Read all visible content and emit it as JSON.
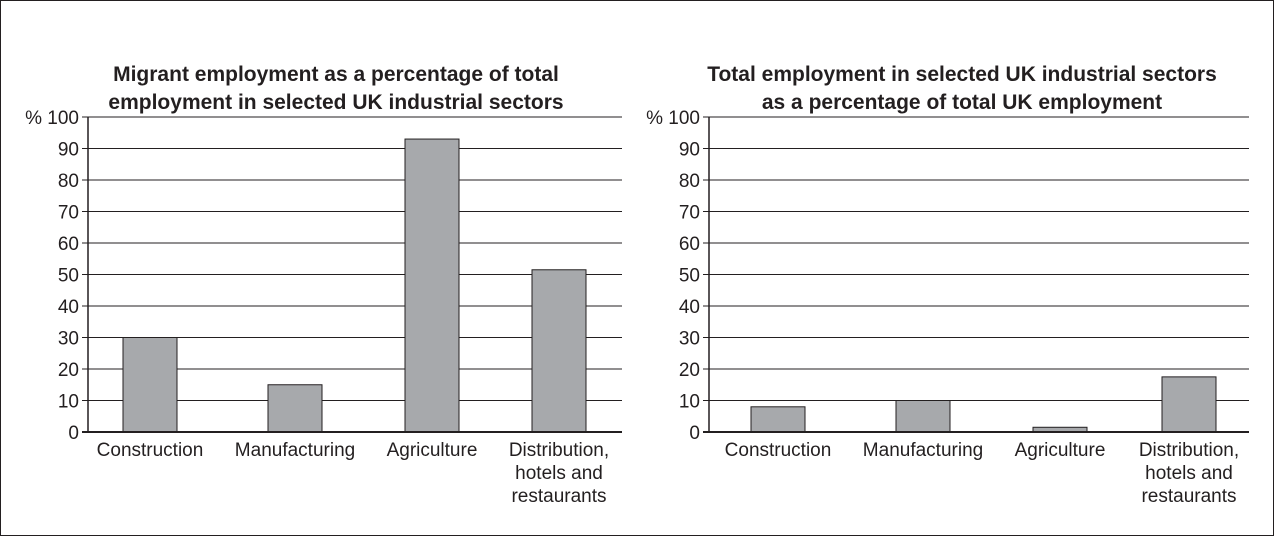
{
  "chart_data": [
    {
      "type": "bar",
      "title_lines": [
        "Migrant employment as a percentage of total",
        "employment in selected UK industrial sectors"
      ],
      "unit_label": "%",
      "categories": [
        [
          "Construction"
        ],
        [
          "Manufacturing"
        ],
        [
          "Agriculture"
        ],
        [
          "Distribution,",
          "hotels and",
          "restaurants"
        ]
      ],
      "values": [
        30,
        15,
        93,
        51.5
      ],
      "ylim": [
        0,
        100
      ],
      "yticks": [
        0,
        10,
        20,
        30,
        40,
        50,
        60,
        70,
        80,
        90,
        100
      ],
      "grid": true,
      "bar_color": "#a7a9ac"
    },
    {
      "type": "bar",
      "title_lines": [
        "Total employment in selected UK industrial sectors",
        "as a percentage of total UK employment"
      ],
      "unit_label": "%",
      "categories": [
        [
          "Construction"
        ],
        [
          "Manufacturing"
        ],
        [
          "Agriculture"
        ],
        [
          "Distribution,",
          "hotels and",
          "restaurants"
        ]
      ],
      "values": [
        8,
        10,
        1.5,
        17.5
      ],
      "ylim": [
        0,
        100
      ],
      "yticks": [
        0,
        10,
        20,
        30,
        40,
        50,
        60,
        70,
        80,
        90,
        100
      ],
      "grid": true,
      "bar_color": "#a7a9ac"
    }
  ]
}
